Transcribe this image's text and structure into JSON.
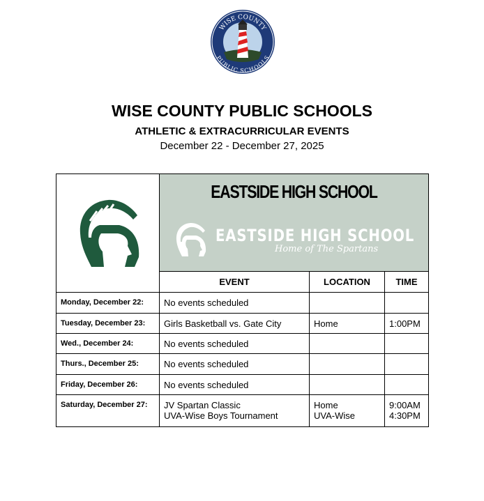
{
  "logo": {
    "text_top": "WISE COUNTY",
    "text_bottom": "PUBLIC SCHOOLS"
  },
  "header": {
    "title": "WISE COUNTY PUBLIC SCHOOLS",
    "subtitle": "ATHLETIC & EXTRACURRICULAR EVENTS",
    "dates": "December 22 - December 27, 2025"
  },
  "school": {
    "name": "EASTSIDE HIGH SCHOOL",
    "banner_name": "EASTSIDE HIGH SCHOOL",
    "banner_tagline": "Home of The Spartans",
    "color": "#1f5a3d"
  },
  "columns": [
    "EVENT",
    "LOCATION",
    "TIME"
  ],
  "rows": [
    {
      "day": "Monday, December 22:",
      "event": "No events scheduled",
      "location": "",
      "time": ""
    },
    {
      "day": "Tuesday, December 23:",
      "event": "Girls Basketball vs. Gate City",
      "location": "Home",
      "time": "1:00PM"
    },
    {
      "day": "Wed., December 24:",
      "event": "No events scheduled",
      "location": "",
      "time": ""
    },
    {
      "day": "Thurs., December 25:",
      "event": "No events scheduled",
      "location": "",
      "time": ""
    },
    {
      "day": "Friday, December 26:",
      "event": "No events scheduled",
      "location": "",
      "time": ""
    },
    {
      "day": "Saturday, December 27:",
      "event": "JV Spartan Classic",
      "event2": "UVA-Wise Boys Tournament",
      "location": "Home",
      "location2": "UVA-Wise",
      "time": "9:00AM",
      "time2": "4:30PM"
    }
  ]
}
